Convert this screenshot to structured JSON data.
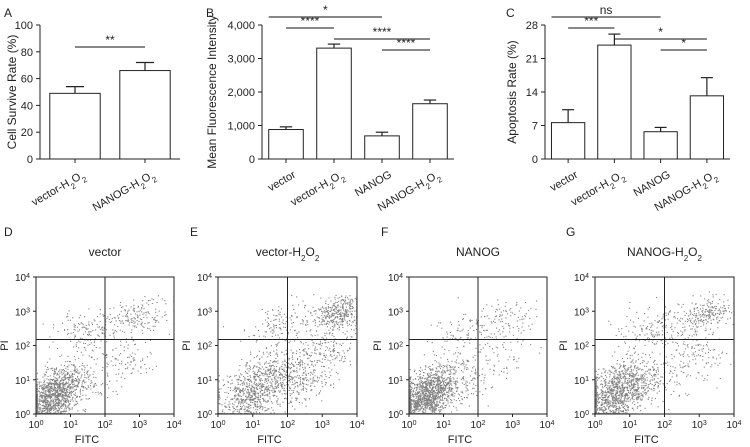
{
  "figure": {
    "panel_labels": {
      "A": "A",
      "B": "B",
      "C": "C",
      "D": "D",
      "E": "E",
      "F": "F",
      "G": "G"
    }
  },
  "chart_data": [
    {
      "panel": "A",
      "type": "bar",
      "ylabel": "Cell Survive Rate (%)",
      "ylim": [
        0,
        100
      ],
      "yticks": [
        0,
        20,
        40,
        60,
        80,
        100
      ],
      "categories": [
        "vector-H2O2",
        "NANOG-H2O2"
      ],
      "values": [
        49,
        66
      ],
      "errors": [
        5,
        6
      ],
      "significance": [
        {
          "from": 0,
          "to": 1,
          "label": "**"
        }
      ]
    },
    {
      "panel": "B",
      "type": "bar",
      "ylabel": "Mean Fluorescence Intensity",
      "ylim": [
        0,
        4000
      ],
      "yticks": [
        0,
        1000,
        2000,
        3000,
        4000
      ],
      "ytick_labels": [
        "0",
        "1,000",
        "2,000",
        "3,000",
        "4,000"
      ],
      "categories": [
        "vector",
        "vector-H2O2",
        "NANOG",
        "NANOG-H2O2"
      ],
      "values": [
        880,
        3310,
        690,
        1650
      ],
      "errors": [
        80,
        120,
        110,
        110
      ],
      "significance": [
        {
          "from": 0,
          "to": 2,
          "label": "*"
        },
        {
          "from": 0,
          "to": 1,
          "label": "****"
        },
        {
          "from": 1,
          "to": 3,
          "label": "****"
        },
        {
          "from": 2,
          "to": 3,
          "label": "****"
        }
      ]
    },
    {
      "panel": "C",
      "type": "bar",
      "ylabel": "Apoptosis Rate (%)",
      "ylim": [
        0,
        28
      ],
      "yticks": [
        0,
        7,
        14,
        21,
        28
      ],
      "categories": [
        "vector",
        "vector-H2O2",
        "NANOG",
        "NANOG-H2O2"
      ],
      "values": [
        7.6,
        23.8,
        5.7,
        13.2
      ],
      "errors": [
        2.7,
        2.3,
        0.9,
        3.8
      ],
      "significance": [
        {
          "from": 0,
          "to": 2,
          "label": "ns"
        },
        {
          "from": 0,
          "to": 1,
          "label": "***"
        },
        {
          "from": 1,
          "to": 3,
          "label": "*"
        },
        {
          "from": 2,
          "to": 3,
          "label": "*"
        }
      ]
    },
    {
      "panel": "D",
      "type": "scatter",
      "title": "vector",
      "xlabel": "FITC",
      "ylabel": "PI",
      "scale": "log",
      "xlim": [
        1,
        10000
      ],
      "ylim": [
        1,
        10000
      ],
      "quadrant_gates": {
        "x": 100,
        "y": 150
      },
      "populations": [
        {
          "center": [
            3,
            3
          ],
          "spread": [
            0.45,
            0.42
          ],
          "fraction": 0.72
        },
        {
          "center": [
            20,
            8
          ],
          "spread": [
            0.6,
            0.35
          ],
          "fraction": 0.06
        },
        {
          "center": [
            800,
            700
          ],
          "spread": [
            0.5,
            0.28
          ],
          "fraction": 0.09
        },
        {
          "center": [
            400,
            40
          ],
          "spread": [
            0.5,
            0.3
          ],
          "fraction": 0.05
        },
        {
          "center": [
            40,
            300
          ],
          "spread": [
            0.5,
            0.3
          ],
          "fraction": 0.08
        }
      ]
    },
    {
      "panel": "E",
      "type": "scatter",
      "title": "vector-H2O2",
      "xlabel": "FITC",
      "ylabel": "PI",
      "scale": "log",
      "xlim": [
        1,
        10000
      ],
      "ylim": [
        1,
        10000
      ],
      "quadrant_gates": {
        "x": 100,
        "y": 150
      },
      "populations": [
        {
          "center": [
            10,
            5
          ],
          "spread": [
            0.5,
            0.45
          ],
          "fraction": 0.45
        },
        {
          "center": [
            180,
            12
          ],
          "spread": [
            0.45,
            0.4
          ],
          "fraction": 0.18
        },
        {
          "center": [
            3000,
            900
          ],
          "spread": [
            0.35,
            0.25
          ],
          "fraction": 0.2
        },
        {
          "center": [
            1200,
            80
          ],
          "spread": [
            0.5,
            0.35
          ],
          "fraction": 0.09
        },
        {
          "center": [
            60,
            400
          ],
          "spread": [
            0.5,
            0.3
          ],
          "fraction": 0.08
        }
      ]
    },
    {
      "panel": "F",
      "type": "scatter",
      "title": "NANOG",
      "xlabel": "FITC",
      "ylabel": "PI",
      "scale": "log",
      "xlim": [
        1,
        10000
      ],
      "ylim": [
        1,
        10000
      ],
      "quadrant_gates": {
        "x": 100,
        "y": 150
      },
      "populations": [
        {
          "center": [
            3,
            3
          ],
          "spread": [
            0.45,
            0.4
          ],
          "fraction": 0.78
        },
        {
          "center": [
            20,
            8
          ],
          "spread": [
            0.55,
            0.35
          ],
          "fraction": 0.07
        },
        {
          "center": [
            600,
            600
          ],
          "spread": [
            0.55,
            0.3
          ],
          "fraction": 0.06
        },
        {
          "center": [
            300,
            40
          ],
          "spread": [
            0.5,
            0.3
          ],
          "fraction": 0.04
        },
        {
          "center": [
            40,
            300
          ],
          "spread": [
            0.5,
            0.3
          ],
          "fraction": 0.05
        }
      ]
    },
    {
      "panel": "G",
      "type": "scatter",
      "title": "NANOG-H2O2",
      "xlabel": "FITC",
      "ylabel": "PI",
      "scale": "log",
      "xlim": [
        1,
        10000
      ],
      "ylim": [
        1,
        10000
      ],
      "quadrant_gates": {
        "x": 100,
        "y": 150
      },
      "populations": [
        {
          "center": [
            4,
            4
          ],
          "spread": [
            0.5,
            0.45
          ],
          "fraction": 0.62
        },
        {
          "center": [
            40,
            10
          ],
          "spread": [
            0.55,
            0.35
          ],
          "fraction": 0.1
        },
        {
          "center": [
            1500,
            800
          ],
          "spread": [
            0.4,
            0.25
          ],
          "fraction": 0.13
        },
        {
          "center": [
            600,
            60
          ],
          "spread": [
            0.5,
            0.35
          ],
          "fraction": 0.07
        },
        {
          "center": [
            50,
            350
          ],
          "spread": [
            0.5,
            0.3
          ],
          "fraction": 0.08
        }
      ]
    }
  ]
}
